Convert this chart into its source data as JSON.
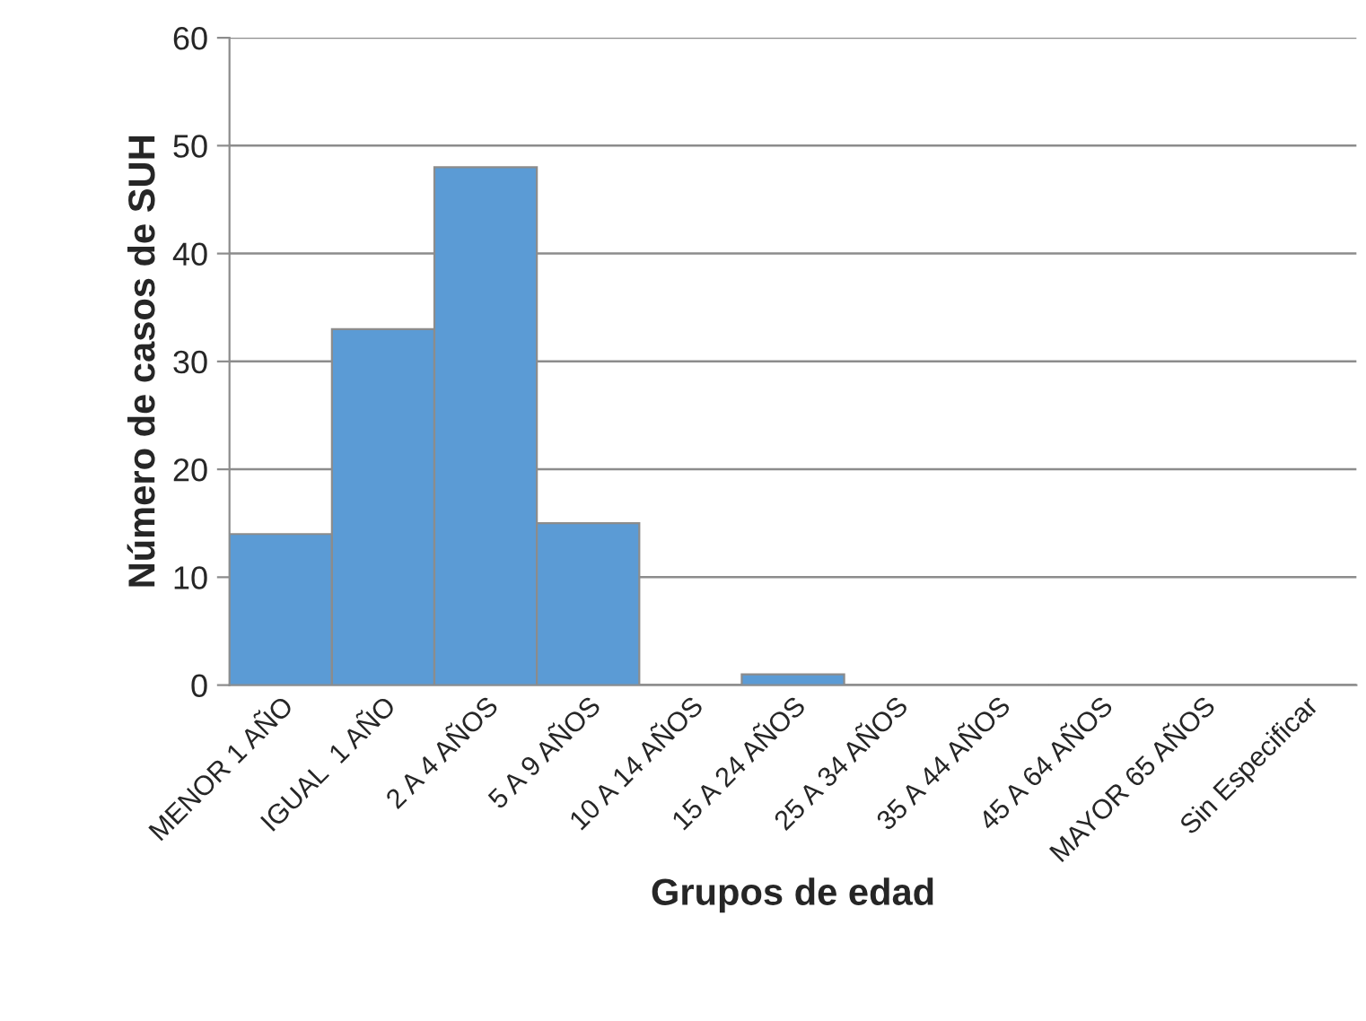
{
  "chart_data": {
    "type": "bar",
    "xlabel": "Grupos de edad",
    "ylabel": "Número de casos de SUH",
    "categories": [
      "MENOR 1 AÑO",
      "IGUAL  1 AÑO",
      "2 A 4 AÑOS",
      "5 A 9 AÑOS",
      "10 A 14 AÑOS",
      "15 A 24 AÑOS",
      "25 A 34 AÑOS",
      "35 A 44 AÑOS",
      "45 A 64 AÑOS",
      "MAYOR 65 AÑOS",
      "Sin Especificar"
    ],
    "values": [
      14,
      33,
      48,
      15,
      0,
      1,
      0,
      0,
      0,
      0,
      0
    ],
    "color": "#5b9bd5",
    "ylim": [
      0,
      60
    ],
    "yticks": [
      0,
      10,
      20,
      30,
      40,
      50,
      60
    ],
    "grid": "y"
  }
}
